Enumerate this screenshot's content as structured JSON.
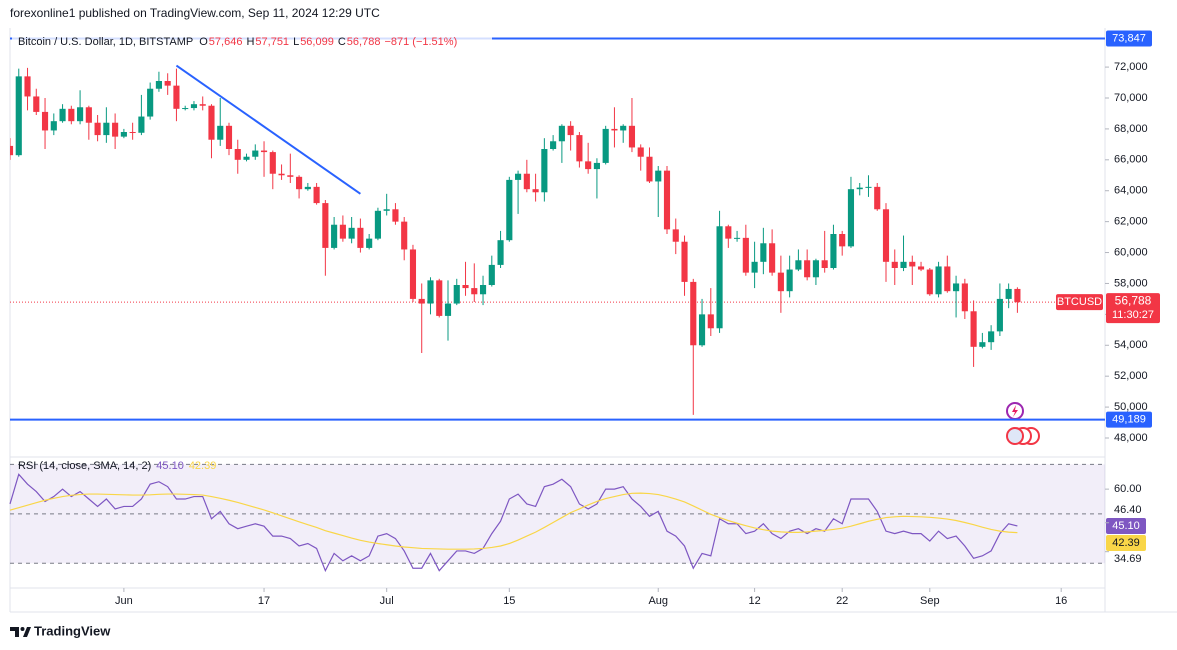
{
  "header": {
    "publisher": "forexonline1 published on TradingView.com, Sep 11, 2024 12:29 UTC"
  },
  "footer": {
    "brand": "TradingView"
  },
  "chart_data": [
    {
      "type": "candlestick",
      "title": "Bitcoin / U.S. Dollar, 1D, BITSTAMP",
      "ohlc_legend": [
        {
          "key": "O",
          "value": "57,646"
        },
        {
          "key": "H",
          "value": "57,751"
        },
        {
          "key": "L",
          "value": "56,099"
        },
        {
          "key": "C",
          "value": "56,788"
        }
      ],
      "change": "−871 (−1.51%)",
      "up_color": "#089981",
      "down_color": "#f23645",
      "x": [
        "May 19",
        "May 20",
        "May 21",
        "May 22",
        "May 23",
        "May 24",
        "May 25",
        "May 26",
        "May 27",
        "May 28",
        "May 29",
        "May 30",
        "May 31",
        "Jun 1",
        "Jun 2",
        "Jun 3",
        "Jun 4",
        "Jun 5",
        "Jun 6",
        "Jun 7",
        "Jun 8",
        "Jun 9",
        "Jun 10",
        "Jun 11",
        "Jun 12",
        "Jun 13",
        "Jun 14",
        "Jun 15",
        "Jun 16",
        "Jun 17",
        "Jun 18",
        "Jun 19",
        "Jun 20",
        "Jun 21",
        "Jun 22",
        "Jun 23",
        "Jun 24",
        "Jun 25",
        "Jun 26",
        "Jun 27",
        "Jun 28",
        "Jun 29",
        "Jun 30",
        "Jul 1",
        "Jul 2",
        "Jul 3",
        "Jul 4",
        "Jul 5",
        "Jul 6",
        "Jul 7",
        "Jul 8",
        "Jul 9",
        "Jul 10",
        "Jul 11",
        "Jul 12",
        "Jul 13",
        "Jul 14",
        "Jul 15",
        "Jul 16",
        "Jul 17",
        "Jul 18",
        "Jul 19",
        "Jul 20",
        "Jul 21",
        "Jul 22",
        "Jul 23",
        "Jul 24",
        "Jul 25",
        "Jul 26",
        "Jul 27",
        "Jul 28",
        "Jul 29",
        "Jul 30",
        "Jul 31",
        "Aug 1",
        "Aug 2",
        "Aug 3",
        "Aug 4",
        "Aug 5",
        "Aug 6",
        "Aug 7",
        "Aug 8",
        "Aug 9",
        "Aug 10",
        "Aug 11",
        "Aug 12",
        "Aug 13",
        "Aug 14",
        "Aug 15",
        "Aug 16",
        "Aug 17",
        "Aug 18",
        "Aug 19",
        "Aug 20",
        "Aug 21",
        "Aug 22",
        "Aug 23",
        "Aug 24",
        "Aug 25",
        "Aug 26",
        "Aug 27",
        "Aug 28",
        "Aug 29",
        "Aug 30",
        "Aug 31",
        "Sep 1",
        "Sep 2",
        "Sep 3",
        "Sep 4",
        "Sep 5",
        "Sep 6",
        "Sep 7",
        "Sep 8",
        "Sep 9",
        "Sep 10",
        "Sep 11"
      ],
      "open": [
        66900,
        66300,
        71400,
        70100,
        69100,
        67900,
        68500,
        69300,
        68500,
        69400,
        68400,
        67600,
        68400,
        67500,
        67800,
        67750,
        68800,
        70600,
        71100,
        70800,
        69300,
        69350,
        69600,
        69500,
        67300,
        68200,
        66700,
        66000,
        66200,
        66600,
        66500,
        65100,
        65000,
        64900,
        64100,
        64250,
        63200,
        60300,
        61800,
        60900,
        61600,
        60300,
        60900,
        62700,
        62800,
        62000,
        60200,
        57000,
        56700,
        58200,
        55900,
        56700,
        57900,
        57700,
        57300,
        57900,
        59200,
        60800,
        64700,
        65100,
        64100,
        63900,
        66700,
        67200,
        68200,
        67600,
        65900,
        65400,
        65800,
        68000,
        67900,
        68200,
        66800,
        66200,
        64600,
        65300,
        61500,
        60700,
        58100,
        54000,
        56000,
        55100,
        61700,
        60900,
        60950,
        58700,
        59400,
        60600,
        58700,
        57500,
        58900,
        59500,
        58400,
        59500,
        59000,
        61200,
        60400,
        64100,
        64200,
        64250,
        62800,
        59400,
        59000,
        59400,
        59100,
        58900,
        57300,
        59100,
        57500,
        58000,
        56200,
        53900,
        54200,
        54900,
        57000,
        57646
      ],
      "high": [
        67400,
        71900,
        71950,
        70600,
        70000,
        69000,
        69600,
        69500,
        70500,
        69500,
        68900,
        69400,
        69000,
        68000,
        68400,
        70200,
        71000,
        71700,
        71600,
        71900,
        69500,
        69800,
        70100,
        69600,
        70000,
        68400,
        67300,
        66400,
        67000,
        67200,
        66600,
        65700,
        66400,
        65000,
        64500,
        64500,
        63400,
        62300,
        62400,
        62300,
        62200,
        61200,
        62900,
        63800,
        63200,
        62300,
        60500,
        58000,
        58400,
        58300,
        58200,
        58300,
        59400,
        59300,
        58500,
        59800,
        61400,
        64900,
        65300,
        66000,
        65100,
        67400,
        67600,
        68300,
        68500,
        67800,
        67100,
        66100,
        68200,
        69400,
        68300,
        70000,
        67000,
        66800,
        65600,
        65600,
        62200,
        61100,
        58300,
        57000,
        57700,
        62700,
        61800,
        61400,
        61800,
        60700,
        61600,
        61500,
        59800,
        59800,
        60200,
        60200,
        59600,
        61400,
        61800,
        61400,
        64900,
        64500,
        65000,
        64500,
        63200,
        60200,
        61100,
        59800,
        59400,
        59000,
        59400,
        59800,
        58500,
        58300,
        56900,
        54800,
        55300,
        58000,
        58000,
        57751
      ],
      "low": [
        66000,
        66200,
        69200,
        68900,
        66700,
        67600,
        68400,
        68300,
        68300,
        67300,
        67200,
        67100,
        66700,
        67400,
        67300,
        67600,
        68600,
        70400,
        70200,
        68500,
        69200,
        69200,
        69200,
        66100,
        66900,
        66300,
        65100,
        65900,
        66000,
        64900,
        64100,
        64700,
        64500,
        63500,
        64000,
        63100,
        58500,
        60200,
        60700,
        60600,
        60000,
        60200,
        60800,
        62400,
        61800,
        59500,
        56800,
        53500,
        56000,
        55800,
        54300,
        56600,
        57200,
        56800,
        56600,
        57800,
        59000,
        60700,
        62500,
        63900,
        63300,
        63300,
        66600,
        65800,
        66600,
        65500,
        65100,
        63500,
        65700,
        66800,
        67100,
        66500,
        65300,
        64500,
        62300,
        61200,
        59900,
        57200,
        49500,
        53900,
        54600,
        54800,
        60300,
        60700,
        58500,
        57700,
        58600,
        58500,
        56100,
        57100,
        58800,
        58200,
        57900,
        58700,
        58900,
        59800,
        60300,
        63700,
        63600,
        62700,
        58100,
        57900,
        58800,
        57900,
        58800,
        57200,
        57100,
        57400,
        55800,
        55700,
        52600,
        53800,
        53700,
        54600,
        56400,
        56099
      ],
      "close": [
        66300,
        71400,
        70100,
        69100,
        67900,
        68500,
        69300,
        68500,
        69400,
        68400,
        67600,
        68400,
        67500,
        67800,
        67750,
        68800,
        70600,
        71100,
        70800,
        69300,
        69350,
        69600,
        69500,
        67300,
        68200,
        66700,
        66000,
        66200,
        66600,
        66500,
        65100,
        65000,
        64900,
        64100,
        64250,
        63200,
        60300,
        61800,
        60900,
        61600,
        60300,
        60900,
        62700,
        62800,
        62000,
        60200,
        57000,
        56700,
        58200,
        55900,
        56700,
        57900,
        57700,
        57300,
        57900,
        59200,
        60800,
        64700,
        65100,
        64100,
        63900,
        66700,
        67200,
        68200,
        67600,
        65900,
        65400,
        65800,
        68000,
        67900,
        68200,
        66800,
        66200,
        64600,
        65300,
        61500,
        60700,
        58100,
        54000,
        56000,
        55100,
        61700,
        60900,
        60950,
        58700,
        59400,
        60600,
        58700,
        57500,
        58900,
        59500,
        58400,
        59500,
        59000,
        61200,
        60400,
        64100,
        64200,
        64250,
        62800,
        59400,
        59000,
        59400,
        59100,
        58900,
        57300,
        59100,
        57500,
        58000,
        56200,
        53900,
        54200,
        54900,
        57000,
        57646,
        56788
      ],
      "xlim": [
        "May 19",
        "Sep 21"
      ],
      "xticks": [
        {
          "value": "Jun 1",
          "label": "Jun"
        },
        {
          "value": "Jun 17",
          "label": "17"
        },
        {
          "value": "Jul 1",
          "label": "Jul"
        },
        {
          "value": "Jul 15",
          "label": "15"
        },
        {
          "value": "Aug 1",
          "label": "Aug"
        },
        {
          "value": "Aug 12",
          "label": "12"
        },
        {
          "value": "Aug 22",
          "label": "22"
        },
        {
          "value": "Sep 1",
          "label": "Sep"
        },
        {
          "value": "Sep 16",
          "label": "16"
        }
      ],
      "ylim": [
        46900,
        74400
      ],
      "yticks": [
        {
          "value": 48000,
          "label": "48,000"
        },
        {
          "value": 50000,
          "label": "50,000"
        },
        {
          "value": 52000,
          "label": "52,000"
        },
        {
          "value": 54000,
          "label": "54,000"
        },
        {
          "value": 56000,
          "label": "56,000"
        },
        {
          "value": 58000,
          "label": "58,000"
        },
        {
          "value": 60000,
          "label": "60,000"
        },
        {
          "value": 62000,
          "label": "62,000"
        },
        {
          "value": 64000,
          "label": "64,000"
        },
        {
          "value": 66000,
          "label": "66,000"
        },
        {
          "value": 68000,
          "label": "68,000"
        },
        {
          "value": 70000,
          "label": "70,000"
        },
        {
          "value": 72000,
          "label": "72,000"
        }
      ],
      "grid": false,
      "hlines": [
        {
          "value": 73847,
          "label": "73,847",
          "color": "#2962ff"
        },
        {
          "value": 49189,
          "label": "49,189",
          "color": "#2962ff"
        }
      ],
      "trendline": {
        "x": [
          "Jun 7",
          "Jun 28"
        ],
        "values": [
          72100,
          63800
        ],
        "color": "#2962ff"
      },
      "last_price": {
        "symbol": "BTCUSD",
        "label": "56,788",
        "countdown": "11:30:27",
        "color": "#f23645"
      }
    },
    {
      "type": "line",
      "title": "RSI (14, close, SMA, 14, 2)",
      "series": [
        {
          "name": "RSI",
          "color": "#7e57c2",
          "last_label": "45.10",
          "values": [
            54,
            66,
            62,
            59,
            55,
            57,
            60,
            57,
            59,
            56,
            53,
            56,
            52,
            53,
            53,
            56,
            62,
            63,
            61,
            56,
            56,
            57,
            57,
            48,
            51,
            46,
            44,
            45,
            46,
            45,
            41,
            41,
            40,
            37,
            38,
            36,
            27,
            34,
            31,
            33,
            31,
            33,
            41,
            42,
            40,
            35,
            28,
            28,
            34,
            27,
            31,
            35,
            35,
            34,
            36,
            42,
            47,
            56,
            58,
            54,
            53,
            61,
            62,
            64,
            61,
            54,
            52,
            54,
            60,
            60,
            61,
            56,
            53,
            49,
            51,
            43,
            41,
            37,
            28,
            34,
            33,
            48,
            46,
            46,
            42,
            43,
            46,
            42,
            40,
            43,
            44,
            42,
            44,
            43,
            48,
            46,
            56,
            56,
            56,
            51,
            43,
            42,
            43,
            42,
            42,
            39,
            43,
            40,
            41,
            37,
            32,
            33,
            35,
            42,
            46,
            45.1
          ]
        },
        {
          "name": "SMA",
          "color": "#f9d648",
          "values": [
            51.5,
            52.5,
            53.5,
            54.5,
            55.5,
            56.3,
            57,
            57.5,
            57.8,
            58,
            58,
            57.9,
            57.8,
            57.7,
            57.6,
            57.6,
            57.7,
            57.9,
            58,
            58,
            57.9,
            57.8,
            57.6,
            57,
            56.3,
            55.5,
            54.6,
            53.6,
            52.6,
            51.6,
            50.4,
            49.2,
            48,
            46.8,
            45.6,
            44.5,
            43.2,
            42.2,
            41.2,
            40.2,
            39.3,
            38.6,
            38,
            37.5,
            37,
            36.6,
            36.3,
            36,
            35.9,
            35.8,
            35.7,
            35.7,
            35.7,
            35.8,
            36,
            36.4,
            37,
            38,
            39.4,
            41,
            42.6,
            44.5,
            46.5,
            48.5,
            50.5,
            52,
            53.6,
            55,
            56.2,
            57,
            57.8,
            58.3,
            58.4,
            58.2,
            57.8,
            57,
            56,
            54.8,
            53.2,
            51.5,
            49.8,
            48.5,
            47.3,
            46.2,
            45.2,
            44.3,
            43.6,
            43,
            42.7,
            42.5,
            42.5,
            42.7,
            43,
            43.3,
            43.7,
            44.2,
            45,
            46,
            47,
            47.8,
            48.5,
            48.8,
            49,
            48.9,
            48.8,
            48.6,
            48.3,
            47.9,
            47.3,
            46.5,
            45.6,
            44.6,
            43.7,
            43,
            42.6,
            42.39
          ]
        }
      ],
      "ylim": [
        20,
        73
      ],
      "yticks": [
        {
          "value": 60,
          "label": "60.00"
        },
        {
          "value": 46.4,
          "label": "46.40"
        },
        {
          "value": 34.69,
          "label": "34.69"
        }
      ],
      "levels": [
        30,
        50,
        70
      ],
      "band_color": "#7e57c2"
    }
  ]
}
